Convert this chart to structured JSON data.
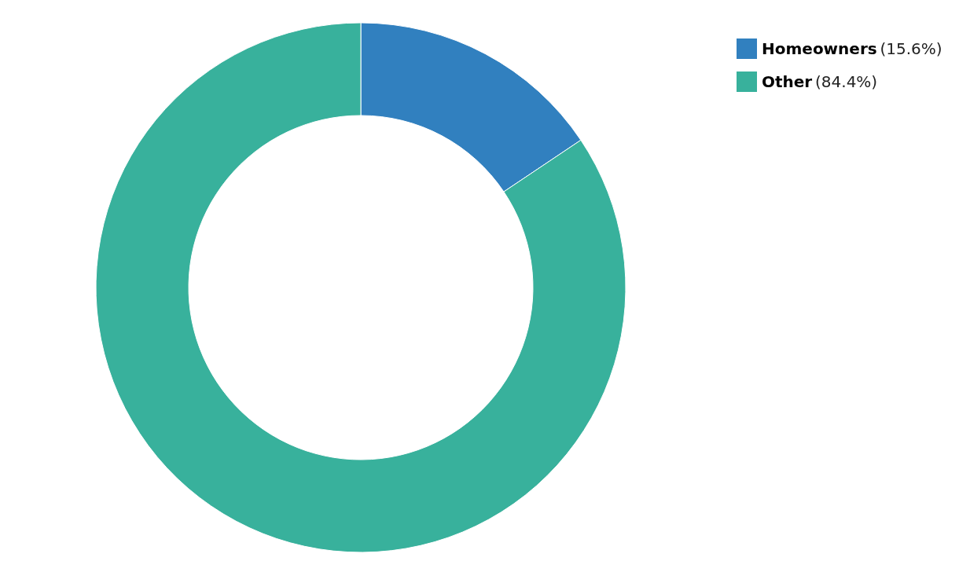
{
  "chart_data": {
    "type": "donut",
    "categories": [
      "Homeowners",
      "Other"
    ],
    "values": [
      15.6,
      84.4
    ],
    "colors": [
      "#3180bf",
      "#38b19c"
    ],
    "value_labels": [
      "(15.6%)",
      "(84.4%)"
    ],
    "legend": "top right"
  }
}
